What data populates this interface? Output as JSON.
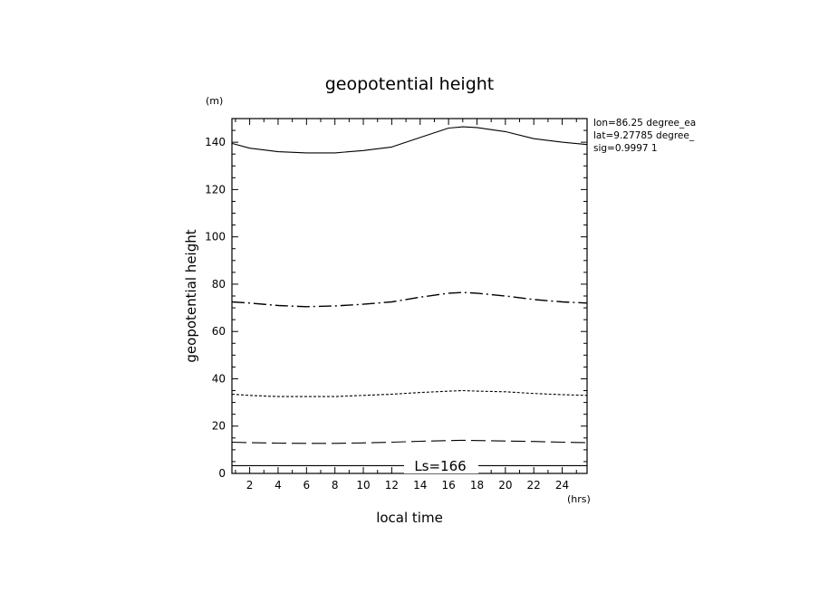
{
  "chart_data": {
    "type": "line",
    "title": "geopotential height",
    "xlabel": "local time",
    "ylabel": "geopotential height",
    "x_unit": "(hrs)",
    "y_unit": "(m)",
    "xlim": [
      0.75,
      25.75
    ],
    "ylim": [
      0,
      150
    ],
    "x_ticks": [
      2,
      4,
      6,
      8,
      10,
      12,
      14,
      16,
      18,
      20,
      22,
      24
    ],
    "y_ticks": [
      0,
      20,
      40,
      60,
      80,
      100,
      120,
      140
    ],
    "info_lines": [
      "lon=86.25 degree_ea",
      "lat=9.27785 degree_",
      "sig=0.9997 1"
    ],
    "annotation": "Ls=166",
    "x": [
      0.75,
      2,
      4,
      6,
      8,
      10,
      12,
      14,
      16,
      17,
      18,
      20,
      22,
      24,
      25.75
    ],
    "series": [
      {
        "style": "solid",
        "values": [
          139.5,
          137.5,
          136,
          135.5,
          135.5,
          136.5,
          138,
          142,
          146,
          146.5,
          146.2,
          144.5,
          141.5,
          140,
          139
        ]
      },
      {
        "style": "dash-dot",
        "values": [
          72.5,
          72,
          71,
          70.5,
          70.8,
          71.5,
          72.5,
          74.5,
          76.2,
          76.5,
          76.2,
          75,
          73.5,
          72.5,
          72
        ]
      },
      {
        "style": "dotted",
        "values": [
          33.5,
          33,
          32.5,
          32.5,
          32.5,
          33,
          33.5,
          34.2,
          34.8,
          35,
          34.8,
          34.5,
          33.8,
          33.3,
          33
        ]
      },
      {
        "style": "long-dash",
        "values": [
          13.2,
          13,
          12.8,
          12.7,
          12.7,
          12.9,
          13.2,
          13.6,
          13.9,
          14,
          13.9,
          13.7,
          13.5,
          13.2,
          13
        ]
      },
      {
        "style": "solid-thin",
        "values": [
          3.3,
          3.3,
          3.3,
          3.3,
          3.3,
          3.3,
          3.3,
          3.3,
          3.3,
          3.3,
          3.3,
          3.3,
          3.3,
          3.3,
          3.3
        ]
      }
    ]
  }
}
